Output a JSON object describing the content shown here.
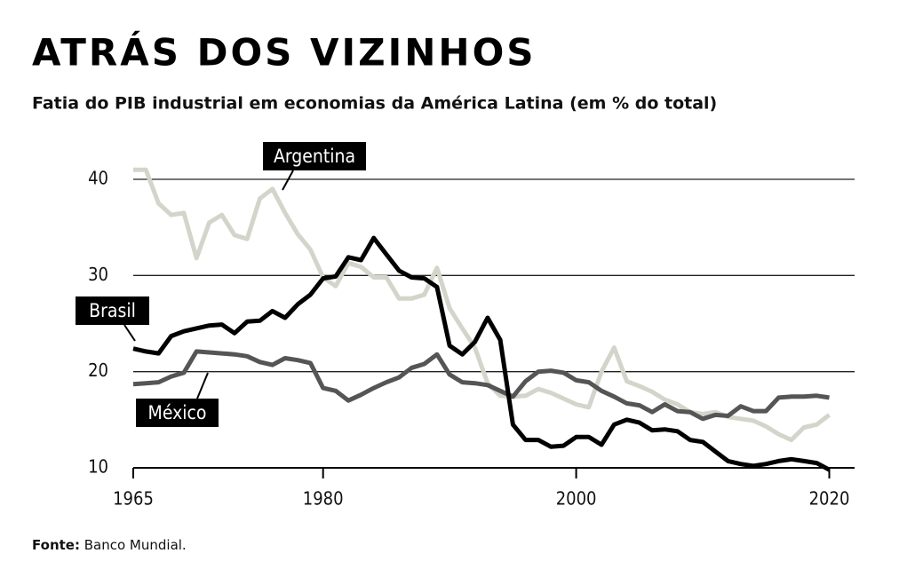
{
  "chart_data": {
    "type": "line",
    "title": "ATRÁS DOS VIZINHOS",
    "subtitle": "Fatia do PIB industrial em economias da América Latina  (em % do total)",
    "source": {
      "label": "Fonte:",
      "text": "Banco Mundial."
    },
    "x": [
      1965,
      1966,
      1967,
      1968,
      1969,
      1970,
      1971,
      1972,
      1973,
      1974,
      1975,
      1976,
      1977,
      1978,
      1979,
      1980,
      1981,
      1982,
      1983,
      1984,
      1985,
      1986,
      1987,
      1988,
      1989,
      1990,
      1991,
      1992,
      1993,
      1994,
      1995,
      1996,
      1997,
      1998,
      1999,
      2000,
      2001,
      2002,
      2003,
      2004,
      2005,
      2006,
      2007,
      2008,
      2009,
      2010,
      2011,
      2012,
      2013,
      2014,
      2015,
      2016,
      2017,
      2018,
      2019,
      2020
    ],
    "series": [
      {
        "name": "Argentina",
        "color": "#d3d5cb",
        "values": [
          41,
          41,
          37.5,
          36.3,
          36.5,
          31.8,
          35.5,
          36.3,
          34.2,
          33.8,
          38,
          39,
          36.5,
          34.3,
          32.7,
          29.8,
          28.9,
          31.3,
          30.9,
          29.8,
          29.8,
          27.6,
          27.6,
          28,
          30.8,
          26.6,
          24.5,
          22.5,
          18.8,
          17.5,
          17.4,
          17.5,
          18.2,
          17.8,
          17.2,
          16.6,
          16.3,
          20,
          22.5,
          19,
          18.5,
          17.9,
          17.1,
          16.6,
          15.8,
          15.6,
          15.8,
          15.3,
          15.1,
          14.9,
          14.3,
          13.5,
          12.9,
          14.2,
          14.5,
          15.5
        ]
      },
      {
        "name": "Brasil",
        "color": "#000000",
        "values": [
          22.4,
          22.1,
          21.9,
          23.7,
          24.2,
          24.5,
          24.8,
          24.9,
          24,
          25.2,
          25.3,
          26.3,
          25.6,
          27,
          28,
          29.7,
          29.9,
          31.9,
          31.6,
          33.9,
          32.2,
          30.5,
          29.8,
          29.7,
          28.8,
          22.7,
          21.8,
          23.1,
          25.6,
          23.3,
          14.5,
          12.9,
          12.9,
          12.2,
          12.3,
          13.2,
          13.2,
          12.4,
          14.5,
          15,
          14.7,
          13.9,
          14,
          13.8,
          12.9,
          12.7,
          11.7,
          10.7,
          10.4,
          10.2,
          10.4,
          10.7,
          10.9,
          10.7,
          10.5,
          9.8
        ]
      },
      {
        "name": "México",
        "color": "#555555",
        "values": [
          18.7,
          18.8,
          18.9,
          19.5,
          19.9,
          22.1,
          22,
          21.9,
          21.8,
          21.6,
          21,
          20.7,
          21.4,
          21.2,
          20.9,
          18.3,
          18,
          17,
          17.6,
          18.3,
          18.9,
          19.4,
          20.4,
          20.8,
          21.8,
          19.7,
          18.9,
          18.8,
          18.6,
          18,
          17.4,
          19,
          20,
          20.1,
          19.9,
          19.1,
          18.9,
          18,
          17.4,
          16.7,
          16.5,
          15.8,
          16.6,
          15.9,
          15.8,
          15.1,
          15.5,
          15.4,
          16.4,
          15.9,
          15.9,
          17.3,
          17.4,
          17.4,
          17.5,
          17.3
        ]
      }
    ],
    "xlim": [
      1965,
      2022
    ],
    "xticks": [
      1965,
      1980,
      2000,
      2020
    ],
    "ylim": [
      10,
      40
    ],
    "yticks": [
      10,
      20,
      30,
      40
    ],
    "grid": true
  }
}
